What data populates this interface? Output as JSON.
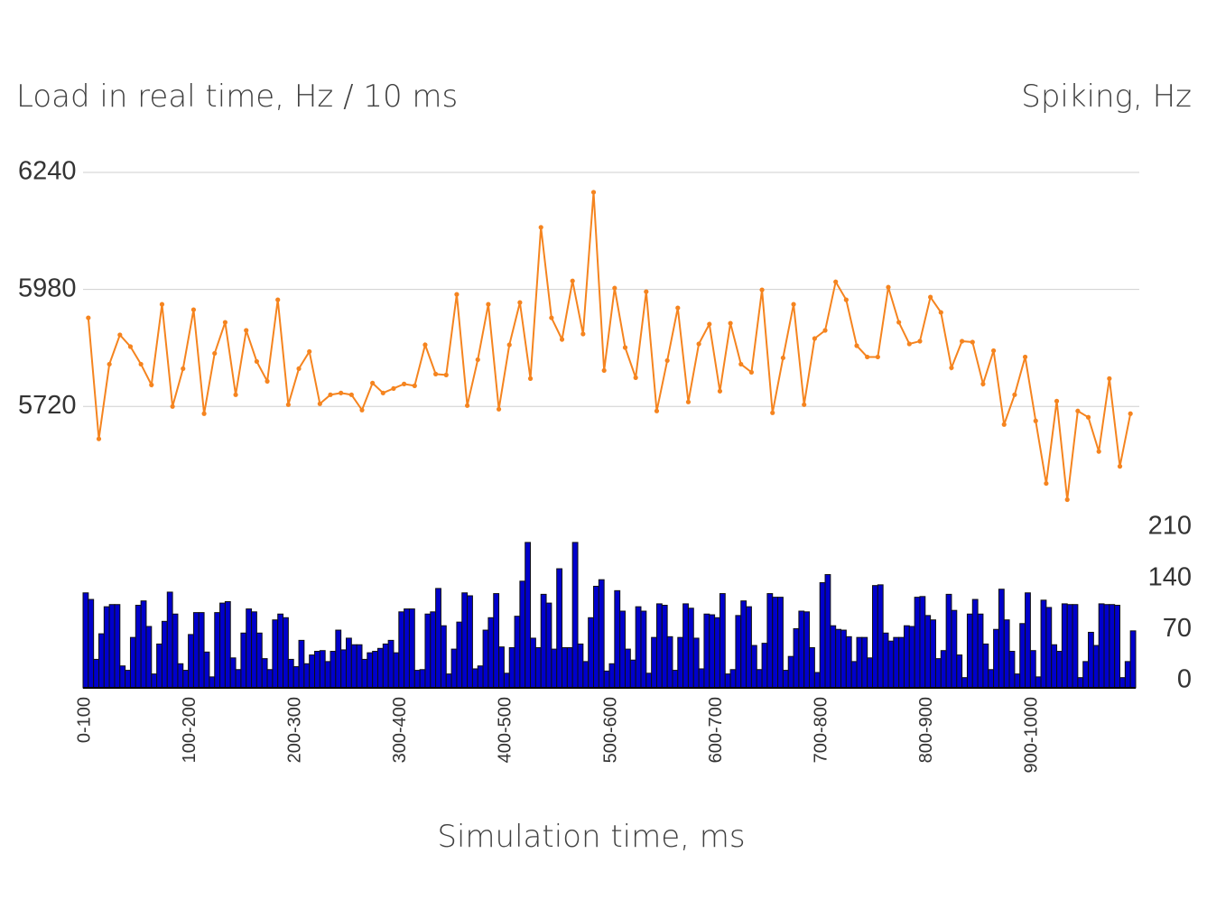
{
  "chart_data": [
    {
      "type": "line",
      "y_label": "Load in real time, Hz / 10 ms",
      "color": "#f5841f",
      "values": [
        5917,
        5648,
        5814,
        5879,
        5853,
        5814,
        5768,
        5947,
        5720,
        5804,
        5935,
        5704,
        5838,
        5907,
        5746,
        5889,
        5820,
        5776,
        5957,
        5724,
        5804,
        5842,
        5726,
        5746,
        5750,
        5746,
        5712,
        5772,
        5750,
        5760,
        5770,
        5766,
        5857,
        5792,
        5790,
        5969,
        5722,
        5824,
        5947,
        5714,
        5857,
        5951,
        5782,
        6118,
        5917,
        5869,
        5999,
        5881,
        6196,
        5800,
        5983,
        5851,
        5784,
        5975,
        5710,
        5822,
        5939,
        5730,
        5859,
        5903,
        5754,
        5905,
        5814,
        5796,
        5979,
        5706,
        5828,
        5947,
        5724,
        5871,
        5889,
        5997,
        5957,
        5855,
        5830,
        5830,
        5985,
        5907,
        5859,
        5865,
        5963,
        5929,
        5806,
        5865,
        5863,
        5770,
        5844,
        5680,
        5746,
        5830,
        5688,
        5549,
        5732,
        5513,
        5710,
        5696,
        5620,
        5782,
        5587,
        5704
      ],
      "ylim": [
        5500,
        6240
      ],
      "yticks": [
        5720,
        5980,
        6240
      ],
      "grid": true
    },
    {
      "type": "bar",
      "y_label": "Spiking, Hz",
      "x_label": "Simulation time, ms",
      "color": "#0000cc",
      "categories": [
        "0-100",
        null,
        null,
        null,
        null,
        null,
        null,
        null,
        null,
        null,
        null,
        null,
        null,
        null,
        null,
        null,
        null,
        null,
        null,
        null,
        "100-200",
        null,
        null,
        null,
        null,
        null,
        null,
        null,
        null,
        null,
        null,
        null,
        null,
        null,
        null,
        null,
        null,
        null,
        null,
        null,
        "200-300",
        null,
        null,
        null,
        null,
        null,
        null,
        null,
        null,
        null,
        null,
        null,
        null,
        null,
        null,
        null,
        null,
        null,
        null,
        null,
        "300-400",
        null,
        null,
        null,
        null,
        null,
        null,
        null,
        null,
        null,
        null,
        null,
        null,
        null,
        null,
        null,
        null,
        null,
        null,
        null,
        "400-500",
        null,
        null,
        null,
        null,
        null,
        null,
        null,
        null,
        null,
        null,
        null,
        null,
        null,
        null,
        null,
        null,
        null,
        null,
        null,
        "500-600",
        null,
        null,
        null,
        null,
        null,
        null,
        null,
        null,
        null,
        null,
        null,
        null,
        null,
        null,
        null,
        null,
        null,
        null,
        null,
        "600-700",
        null,
        null,
        null,
        null,
        null,
        null,
        null,
        null,
        null,
        null,
        null,
        null,
        null,
        null,
        null,
        null,
        null,
        null,
        null,
        "700-800",
        null,
        null,
        null,
        null,
        null,
        null,
        null,
        null,
        null,
        null,
        null,
        null,
        null,
        null,
        null,
        null,
        null,
        null,
        null,
        "800-900",
        null,
        null,
        null,
        null,
        null,
        null,
        null,
        null,
        null,
        null,
        null,
        null,
        null,
        null,
        null,
        null,
        null,
        null,
        null,
        "900-1000",
        null,
        null,
        null,
        null,
        null,
        null,
        null,
        null,
        null,
        null,
        null,
        null,
        null,
        null,
        null,
        null,
        null,
        null,
        null
      ],
      "values": [
        130,
        121,
        39,
        74,
        111,
        114,
        114,
        30,
        24,
        69,
        113,
        119,
        84,
        19,
        60,
        91,
        131,
        101,
        33,
        24,
        73,
        103,
        103,
        49,
        15,
        103,
        116,
        118,
        41,
        25,
        75,
        108,
        104,
        75,
        40,
        25,
        93,
        101,
        96,
        39,
        29,
        65,
        33,
        45,
        50,
        51,
        36,
        50,
        79,
        52,
        68,
        59,
        59,
        39,
        48,
        50,
        54,
        60,
        65,
        48,
        104,
        108,
        108,
        24,
        25,
        101,
        104,
        136,
        85,
        19,
        53,
        90,
        130,
        126,
        26,
        30,
        79,
        96,
        129,
        56,
        20,
        55,
        98,
        146,
        199,
        68,
        55,
        128,
        116,
        53,
        163,
        55,
        55,
        199,
        60,
        36,
        96,
        139,
        148,
        23,
        33,
        133,
        105,
        53,
        38,
        111,
        105,
        20,
        69,
        115,
        113,
        70,
        24,
        69,
        115,
        109,
        68,
        26,
        101,
        100,
        96,
        129,
        19,
        25,
        99,
        119,
        111,
        58,
        25,
        61,
        129,
        124,
        124,
        24,
        43,
        81,
        105,
        104,
        55,
        21,
        144,
        155,
        85,
        80,
        79,
        70,
        36,
        69,
        69,
        41,
        140,
        141,
        75,
        64,
        69,
        69,
        85,
        84,
        124,
        125,
        99,
        93,
        40,
        51,
        128,
        106,
        45,
        14,
        101,
        121,
        101,
        60,
        25,
        80,
        135,
        93,
        50,
        19,
        88,
        130,
        51,
        15,
        120,
        110,
        59,
        50,
        115,
        114,
        114,
        14,
        36,
        76,
        58,
        115,
        114,
        114,
        113,
        14,
        36,
        78
      ],
      "ylim": [
        0,
        210
      ],
      "yticks": [
        0,
        70,
        140,
        210
      ]
    }
  ]
}
